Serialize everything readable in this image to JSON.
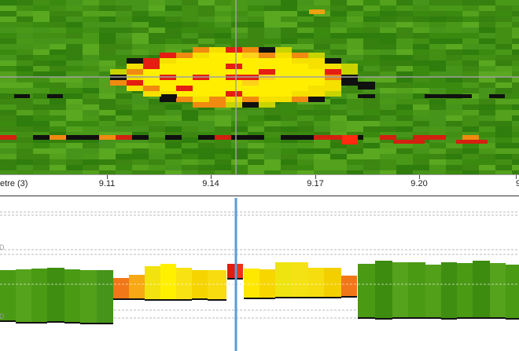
{
  "axis": {
    "title_fragment": "etre (3)",
    "ticks": [
      "9.11",
      "9.14",
      "9.17",
      "9.20",
      "9"
    ]
  },
  "colors": {
    "background_green": "#3f8e12",
    "crosshair": "#a0a0a0",
    "cursor_line": "#5b9bd5",
    "hot_yellow": "#ffee00",
    "hot_red": "#e51d12",
    "hot_orange": "#f08a10",
    "black_pixel": "#101010"
  },
  "chart_data": {
    "type": "bar",
    "xlabel": "",
    "ylabel": "",
    "note_colors": [
      "green",
      "orange",
      "yellow",
      "red"
    ]
  }
}
